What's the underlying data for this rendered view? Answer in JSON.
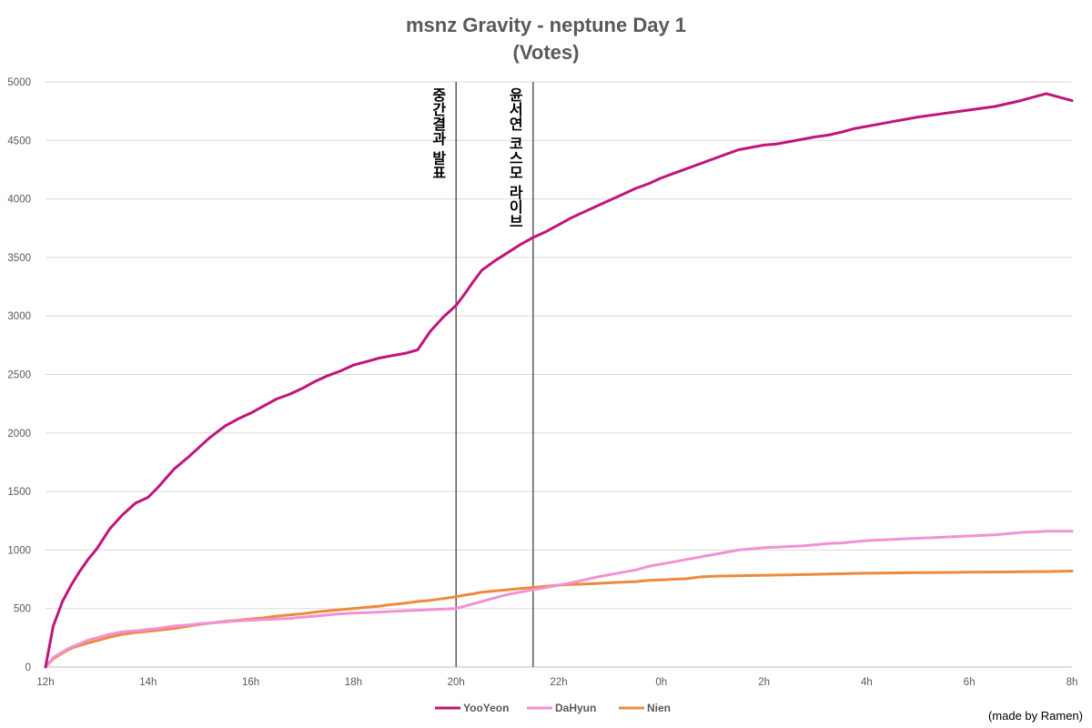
{
  "chart_data": {
    "type": "line",
    "title": "msnz Gravity - neptune Day 1",
    "subtitle": "(Votes)",
    "xlabel": "",
    "ylabel": "",
    "ylim": [
      0,
      5000
    ],
    "yticks": [
      0,
      500,
      1000,
      1500,
      2000,
      2500,
      3000,
      3500,
      4000,
      4500,
      5000
    ],
    "xlim": [
      0,
      20
    ],
    "x_tick_labels": [
      "12h",
      "14h",
      "16h",
      "18h",
      "20h",
      "22h",
      "0h",
      "2h",
      "4h",
      "6h",
      "8h"
    ],
    "x_tick_positions": [
      0,
      2,
      4,
      6,
      8,
      10,
      12,
      14,
      16,
      18,
      20
    ],
    "grid": "horizontal",
    "legend": "bottom",
    "annotations": [
      {
        "x": 8.0,
        "text": "중간결과 발표"
      },
      {
        "x": 9.5,
        "text": "윤서연 코스모 라이브"
      }
    ],
    "x": [
      0,
      0.15,
      0.33,
      0.5,
      0.67,
      0.83,
      1,
      1.25,
      1.5,
      1.75,
      2,
      2.2,
      2.5,
      2.8,
      3,
      3.2,
      3.5,
      3.75,
      4,
      4.25,
      4.5,
      4.75,
      5,
      5.25,
      5.5,
      5.75,
      6,
      6.25,
      6.5,
      6.75,
      7,
      7.25,
      7.5,
      7.75,
      8,
      8.17,
      8.33,
      8.5,
      8.75,
      9,
      9.25,
      9.5,
      9.75,
      10,
      10.25,
      10.5,
      10.75,
      11,
      11.25,
      11.5,
      11.75,
      12,
      12.25,
      12.5,
      12.75,
      13,
      13.25,
      13.5,
      13.75,
      14,
      14.25,
      14.5,
      14.75,
      15,
      15.25,
      15.5,
      15.75,
      16,
      16.5,
      17,
      17.5,
      18,
      18.5,
      19,
      19.5,
      20
    ],
    "series": [
      {
        "name": "YooYeon",
        "color": "#C0157A",
        "values": [
          0,
          350,
          560,
          700,
          820,
          920,
          1010,
          1180,
          1300,
          1400,
          1450,
          1540,
          1690,
          1800,
          1880,
          1960,
          2060,
          2120,
          2170,
          2230,
          2290,
          2330,
          2380,
          2440,
          2490,
          2530,
          2580,
          2610,
          2640,
          2660,
          2680,
          2710,
          2870,
          2990,
          3090,
          3190,
          3290,
          3390,
          3470,
          3540,
          3610,
          3670,
          3720,
          3780,
          3840,
          3890,
          3940,
          3990,
          4040,
          4090,
          4130,
          4180,
          4220,
          4260,
          4300,
          4340,
          4380,
          4420,
          4440,
          4460,
          4470,
          4490,
          4510,
          4530,
          4545,
          4570,
          4600,
          4620,
          4660,
          4700,
          4730,
          4760,
          4790,
          4840,
          4900,
          4840
        ]
      },
      {
        "name": "DaHyun",
        "color": "#F291D4",
        "values": [
          0,
          80,
          130,
          170,
          200,
          230,
          250,
          280,
          300,
          310,
          320,
          330,
          350,
          360,
          370,
          375,
          385,
          395,
          400,
          405,
          410,
          415,
          425,
          435,
          445,
          455,
          460,
          465,
          470,
          475,
          480,
          485,
          490,
          495,
          500,
          520,
          540,
          560,
          590,
          620,
          640,
          660,
          680,
          700,
          720,
          745,
          770,
          790,
          810,
          830,
          860,
          880,
          900,
          920,
          940,
          960,
          980,
          1000,
          1010,
          1020,
          1025,
          1030,
          1035,
          1045,
          1055,
          1060,
          1070,
          1080,
          1090,
          1100,
          1110,
          1120,
          1130,
          1150,
          1160,
          1160
        ]
      },
      {
        "name": "Nien",
        "color": "#ED8A3C",
        "values": [
          0,
          70,
          120,
          160,
          185,
          205,
          225,
          255,
          280,
          295,
          305,
          315,
          330,
          350,
          365,
          375,
          390,
          400,
          410,
          420,
          435,
          445,
          455,
          470,
          480,
          490,
          500,
          510,
          520,
          535,
          545,
          560,
          570,
          585,
          600,
          615,
          625,
          640,
          650,
          660,
          670,
          680,
          690,
          700,
          705,
          710,
          715,
          720,
          725,
          730,
          740,
          745,
          750,
          755,
          770,
          775,
          778,
          780,
          782,
          784,
          786,
          788,
          790,
          792,
          795,
          797,
          800,
          802,
          804,
          806,
          808,
          810,
          812,
          814,
          816,
          820
        ]
      }
    ]
  },
  "credit": "(made by Ramen)"
}
